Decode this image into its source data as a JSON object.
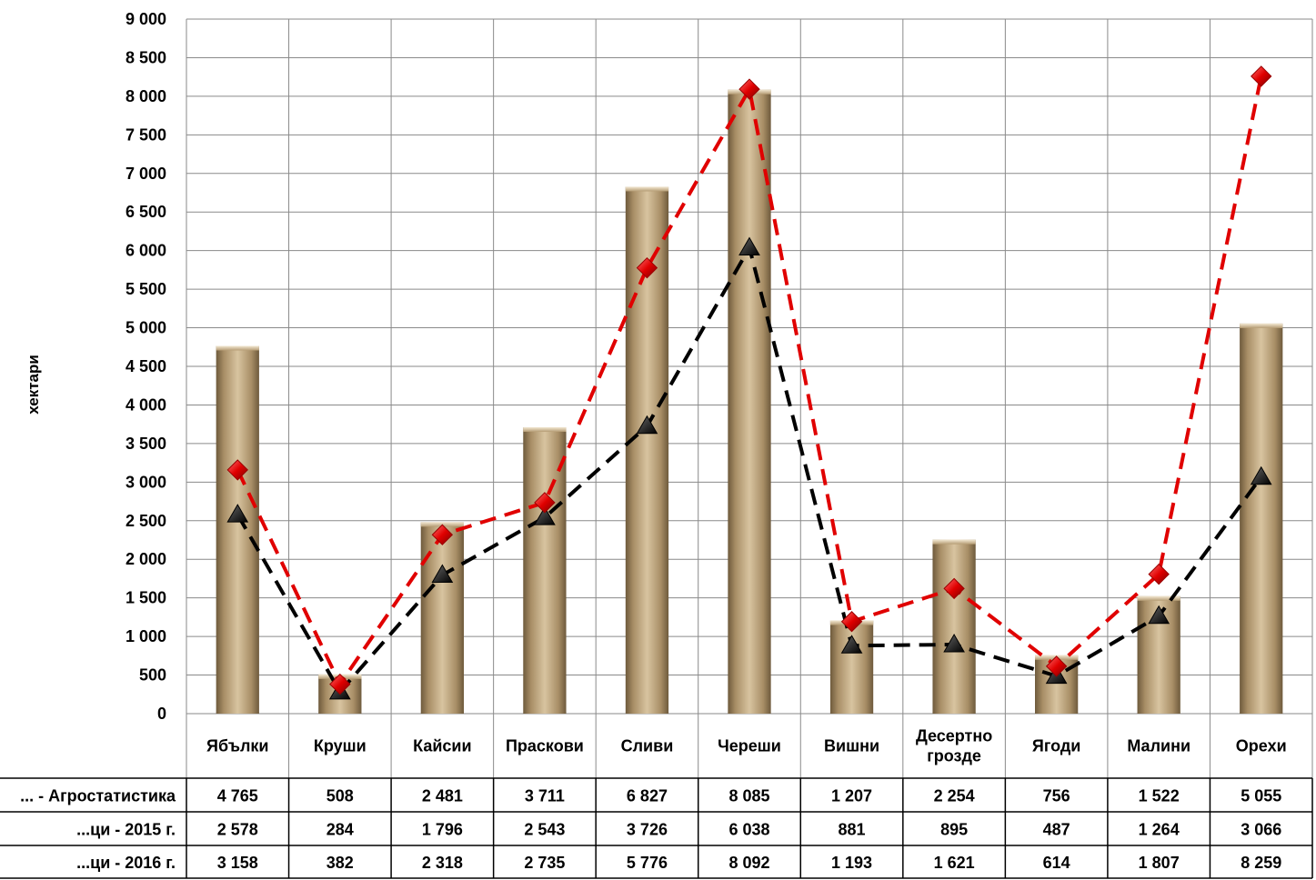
{
  "chart_data": {
    "type": "bar",
    "ylabel": "хектари",
    "ylim": [
      0,
      9000
    ],
    "ytick_step": 500,
    "ytick_labels": [
      "0",
      "500",
      "1 000",
      "1 500",
      "2 000",
      "2 500",
      "3 000",
      "3 500",
      "4 000",
      "4 500",
      "5 000",
      "5 500",
      "6 000",
      "6 500",
      "7 000",
      "7 500",
      "8 000",
      "8 500",
      "9 000"
    ],
    "grid": true,
    "categories": [
      "Ябълки",
      "Круши",
      "Кайсии",
      "Праскови",
      "Сливи",
      "Череши",
      "Вишни",
      "Десертно\nгрозде",
      "Ягоди",
      "Малини",
      "Орехи"
    ],
    "series": [
      {
        "name": "... - Агростатистика",
        "kind": "bar",
        "color": "#b8a07a",
        "values": [
          4765,
          508,
          2481,
          3711,
          6827,
          8085,
          1207,
          2254,
          756,
          1522,
          5055
        ],
        "labels": [
          "4 765",
          "508",
          "2 481",
          "3 711",
          "6 827",
          "8 085",
          "1 207",
          "2 254",
          "756",
          "1 522",
          "5 055"
        ]
      },
      {
        "name": "...ци - 2015 г.",
        "kind": "line",
        "marker": "triangle",
        "color": "#000000",
        "values": [
          2578,
          284,
          1796,
          2543,
          3726,
          6038,
          881,
          895,
          487,
          1264,
          3066
        ],
        "labels": [
          "2 578",
          "284",
          "1 796",
          "2 543",
          "3 726",
          "6 038",
          "881",
          "895",
          "487",
          "1 264",
          "3 066"
        ]
      },
      {
        "name": "...ци - 2016 г.",
        "kind": "line",
        "marker": "diamond",
        "color": "#e00000",
        "values": [
          3158,
          382,
          2318,
          2735,
          5776,
          8092,
          1193,
          1621,
          614,
          1807,
          8259
        ],
        "labels": [
          "3 158",
          "382",
          "2 318",
          "2 735",
          "5 776",
          "8 092",
          "1 193",
          "1 621",
          "614",
          "1 807",
          "8 259"
        ]
      }
    ]
  },
  "table": {
    "row_labels": [
      "... - Агростатистика",
      "...ци - 2015 г.",
      "...ци - 2016 г."
    ]
  }
}
